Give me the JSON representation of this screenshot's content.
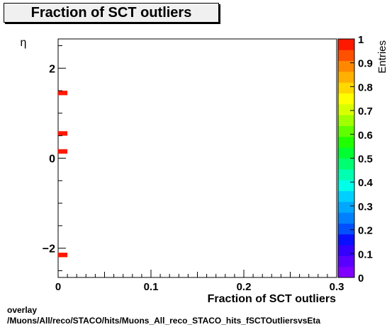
{
  "chart_data": {
    "type": "heatmap",
    "title": "Fraction of SCT outliers",
    "xlabel": "Fraction of SCT outliers",
    "ylabel": "η",
    "zlabel": "Entries",
    "xlim": [
      0,
      0.3
    ],
    "ylim": [
      -2.65,
      2.65
    ],
    "zlim": [
      0,
      1
    ],
    "x_ticks": [
      0,
      0.1,
      0.2,
      0.3
    ],
    "x_tick_labels": [
      "0",
      "0.1",
      "0.2",
      "0.3"
    ],
    "y_ticks": [
      -2,
      0,
      2
    ],
    "y_tick_labels": [
      "−2",
      "0",
      "2"
    ],
    "z_ticks": [
      0,
      0.1,
      0.2,
      0.3,
      0.4,
      0.5,
      0.6,
      0.7,
      0.8,
      0.9,
      1
    ],
    "z_tick_labels": [
      "0",
      "0.1",
      "0.2",
      "0.3",
      "0.4",
      "0.5",
      "0.6",
      "0.7",
      "0.8",
      "0.9",
      "1"
    ],
    "bin_width_x": 0.01,
    "bin_height_y": 0.1,
    "cells": [
      {
        "x": 0.0,
        "y": 1.4,
        "z": 1
      },
      {
        "x": 0.0,
        "y": 0.5,
        "z": 1
      },
      {
        "x": 0.0,
        "y": 0.1,
        "z": 1
      },
      {
        "x": 0.0,
        "y": -2.2,
        "z": 1
      }
    ],
    "palette": [
      "#7f00ff",
      "#5a00ff",
      "#3500ff",
      "#0a10ff",
      "#0050ff",
      "#0080ff",
      "#00a8ff",
      "#00d0ff",
      "#00ffe8",
      "#00ffb0",
      "#00ff70",
      "#00ff30",
      "#20ff00",
      "#60ff00",
      "#a0ff00",
      "#d8ff00",
      "#ffff00",
      "#ffd800",
      "#ffb000",
      "#ff8800",
      "#ff5000",
      "#ff1800"
    ]
  },
  "footer": {
    "line1": "overlay",
    "line2": "/Muons/All/reco/STACO/hits/Muons_All_reco_STACO_hits_fSCTOutliersvsEta"
  }
}
